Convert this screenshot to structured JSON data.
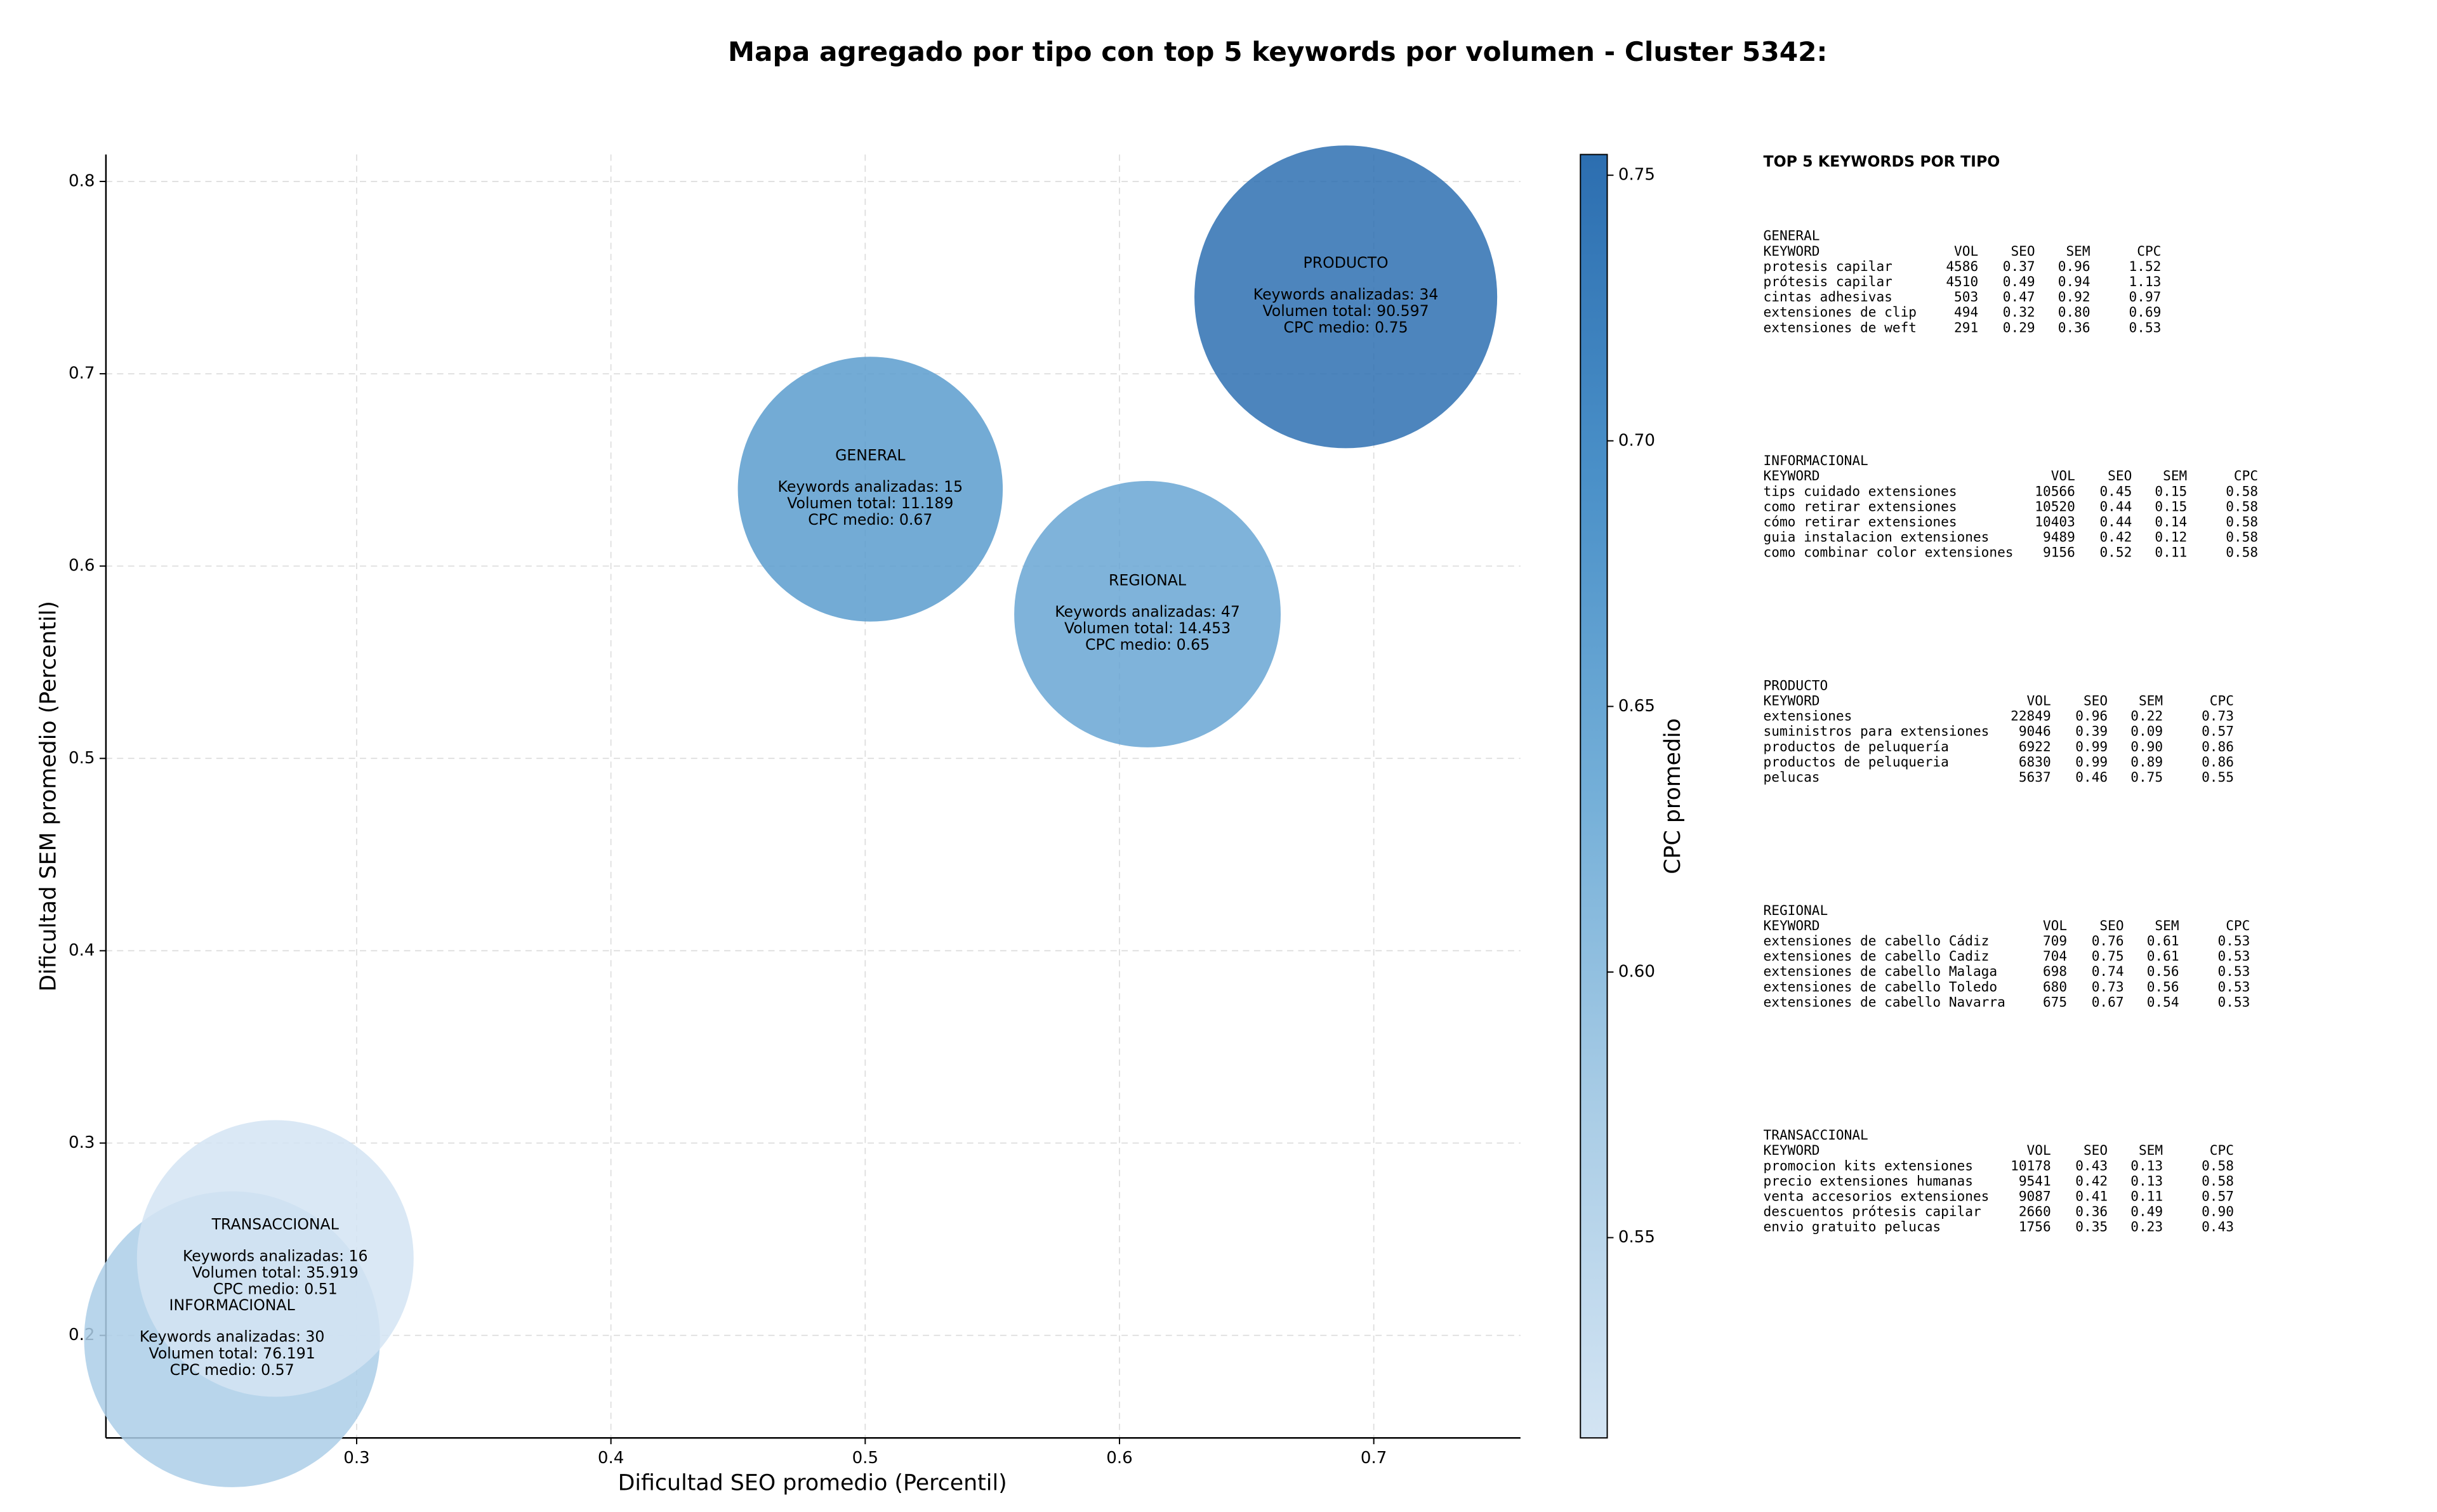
{
  "chart_data": {
    "type": "bubble",
    "title": "Mapa agregado por tipo con top 5 keywords por volumen - Cluster 5342:",
    "x_label": "Dificultad SEO promedio (Percentil)",
    "y_label": "Dificultad SEM promedio (Percentil)",
    "colorbar_label": "CPC promedio",
    "categories": [
      "INFORMACIONAL",
      "TRANSACCIONAL",
      "GENERAL",
      "REGIONAL",
      "PRODUCTO"
    ],
    "x": [
      0.251,
      0.268,
      0.502,
      0.611,
      0.689
    ],
    "values": [
      0.198,
      0.24,
      0.64,
      0.575,
      0.74
    ],
    "color_values": [
      0.57,
      0.51,
      0.67,
      0.65,
      0.75
    ],
    "size_values": [
      76191,
      35919,
      11189,
      14453,
      90597
    ],
    "annotations": [
      [
        "Keywords analizadas: 30",
        "Volumen total: 76.191",
        "CPC medio: 0.57"
      ],
      [
        "Keywords analizadas: 16",
        "Volumen total: 35.919",
        "CPC medio: 0.51"
      ],
      [
        "Keywords analizadas: 15",
        "Volumen total: 11.189",
        "CPC medio: 0.67"
      ],
      [
        "Keywords analizadas: 47",
        "Volumen total: 14.453",
        "CPC medio: 0.65"
      ],
      [
        "Keywords analizadas: 34",
        "Volumen total: 90.597",
        "CPC medio: 0.75"
      ]
    ],
    "xlim": [
      0.2014,
      0.7577
    ],
    "ylim": [
      0.1467,
      0.814
    ],
    "xticks": [
      0.3,
      0.4,
      0.5,
      0.6,
      0.7
    ],
    "yticks": [
      0.2,
      0.3,
      0.4,
      0.5,
      0.6,
      0.7,
      0.8
    ],
    "clim": [
      0.5123,
      0.7539
    ],
    "cticks": [
      0.55,
      {
        "value": 0.6,
        "label": "0.60"
      },
      0.65,
      {
        "value": 0.7,
        "label": "0.70"
      },
      0.75
    ],
    "colormap": [
      "#d3e4f3",
      "#aacde6",
      "#74afd8",
      "#4a90c8",
      "#2c6eb0"
    ],
    "grid": true
  },
  "panel": {
    "title": "TOP 5 KEYWORDS POR TIPO",
    "columns": [
      "KEYWORD",
      "VOL",
      "SEO",
      "SEM",
      "CPC"
    ],
    "groups": [
      {
        "name": "GENERAL",
        "rows": [
          [
            "protesis capilar",
            "4586",
            "0.37",
            "0.96",
            "1.52"
          ],
          [
            "prótesis capilar",
            "4510",
            "0.49",
            "0.94",
            "1.13"
          ],
          [
            "cintas adhesivas",
            "503",
            "0.47",
            "0.92",
            "0.97"
          ],
          [
            "extensiones de clip",
            "494",
            "0.32",
            "0.80",
            "0.69"
          ],
          [
            "extensiones de weft",
            "291",
            "0.29",
            "0.36",
            "0.53"
          ]
        ]
      },
      {
        "name": "INFORMACIONAL",
        "rows": [
          [
            "tips cuidado extensiones",
            "10566",
            "0.45",
            "0.15",
            "0.58"
          ],
          [
            "como retirar extensiones",
            "10520",
            "0.44",
            "0.15",
            "0.58"
          ],
          [
            "cómo retirar extensiones",
            "10403",
            "0.44",
            "0.14",
            "0.58"
          ],
          [
            "guia instalacion extensiones",
            "9489",
            "0.42",
            "0.12",
            "0.58"
          ],
          [
            "como combinar color extensiones",
            "9156",
            "0.52",
            "0.11",
            "0.58"
          ]
        ]
      },
      {
        "name": "PRODUCTO",
        "rows": [
          [
            "extensiones",
            "22849",
            "0.96",
            "0.22",
            "0.73"
          ],
          [
            "suministros para extensiones",
            "9046",
            "0.39",
            "0.09",
            "0.57"
          ],
          [
            "productos de peluquería",
            "6922",
            "0.99",
            "0.90",
            "0.86"
          ],
          [
            "productos de peluqueria",
            "6830",
            "0.99",
            "0.89",
            "0.86"
          ],
          [
            "pelucas",
            "5637",
            "0.46",
            "0.75",
            "0.55"
          ]
        ]
      },
      {
        "name": "REGIONAL",
        "rows": [
          [
            "extensiones de cabello Cádiz",
            "709",
            "0.76",
            "0.61",
            "0.53"
          ],
          [
            "extensiones de cabello Cadiz",
            "704",
            "0.75",
            "0.61",
            "0.53"
          ],
          [
            "extensiones de cabello Malaga",
            "698",
            "0.74",
            "0.56",
            "0.53"
          ],
          [
            "extensiones de cabello Toledo",
            "680",
            "0.73",
            "0.56",
            "0.53"
          ],
          [
            "extensiones de cabello Navarra",
            "675",
            "0.67",
            "0.54",
            "0.53"
          ]
        ]
      },
      {
        "name": "TRANSACCIONAL",
        "rows": [
          [
            "promocion kits extensiones",
            "10178",
            "0.43",
            "0.13",
            "0.58"
          ],
          [
            "precio extensiones humanas",
            "9541",
            "0.42",
            "0.13",
            "0.58"
          ],
          [
            "venta accesorios extensiones",
            "9087",
            "0.41",
            "0.11",
            "0.57"
          ],
          [
            "descuentos prótesis capilar",
            "2660",
            "0.36",
            "0.49",
            "0.90"
          ],
          [
            "envio gratuito pelucas",
            "1756",
            "0.35",
            "0.23",
            "0.43"
          ]
        ]
      }
    ]
  }
}
